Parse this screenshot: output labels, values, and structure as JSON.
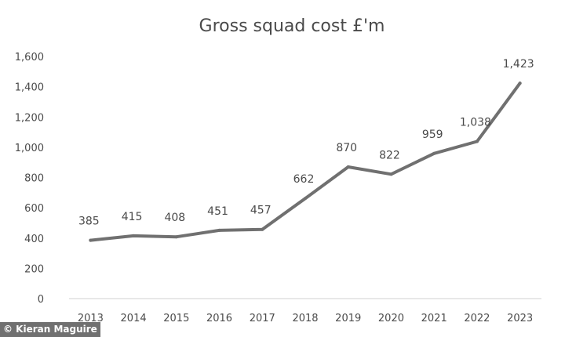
{
  "credit": "© Kieran Maguire",
  "chart_data": {
    "type": "line",
    "title": "Gross squad cost £'m",
    "xlabel": "",
    "ylabel": "",
    "categories": [
      "2013",
      "2014",
      "2015",
      "2016",
      "2017",
      "2018",
      "2019",
      "2020",
      "2021",
      "2022",
      "2023"
    ],
    "values": [
      385,
      415,
      408,
      451,
      457,
      662,
      870,
      822,
      959,
      1038,
      1423
    ],
    "value_labels": [
      "385",
      "415",
      "408",
      "451",
      "457",
      "662",
      "870",
      "822",
      "959",
      "1,038",
      "1,423"
    ],
    "ylim": [
      0,
      1600
    ],
    "yticks": [
      0,
      200,
      400,
      600,
      800,
      1000,
      1200,
      1400,
      1600
    ],
    "ytick_labels": [
      "0",
      "200",
      "400",
      "600",
      "800",
      "1,000",
      "1,200",
      "1,400",
      "1,600"
    ],
    "grid": false,
    "legend": "none",
    "line_color": "#707070",
    "text_color": "#4a4a4a"
  }
}
